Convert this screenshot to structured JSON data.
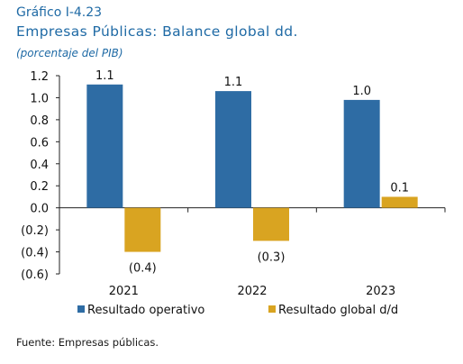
{
  "figure_label": "Gráfico I-4.23",
  "title": "Empresas Públicas: Balance global dd.",
  "subtitle": "(porcentaje del PIB)",
  "source": "Fuente: Empresas públicas.",
  "colors": {
    "series1": "#2e6ca4",
    "series2": "#d9a421",
    "title": "#1f6aa5"
  },
  "chart_data": {
    "type": "bar",
    "categories": [
      "2021",
      "2022",
      "2023"
    ],
    "series": [
      {
        "name": "Resultado operativo",
        "values": [
          1.12,
          1.06,
          0.98
        ],
        "labels": [
          "1.1",
          "1.1",
          "1.0"
        ]
      },
      {
        "name": "Resultado global d/d",
        "values": [
          -0.4,
          -0.3,
          0.1
        ],
        "labels": [
          "(0.4)",
          "(0.3)",
          "0.1"
        ]
      }
    ],
    "ylim": [
      -0.6,
      1.2
    ],
    "yticks": [
      1.2,
      1.0,
      0.8,
      0.6,
      0.4,
      0.2,
      0.0,
      -0.2,
      -0.4,
      -0.6
    ],
    "ytick_labels": [
      "1.2",
      "1.0",
      "0.8",
      "0.6",
      "0.4",
      "0.2",
      "0.0",
      "(0.2)",
      "(0.4)",
      "(0.6)"
    ],
    "legend_position": "bottom",
    "grid": false
  }
}
